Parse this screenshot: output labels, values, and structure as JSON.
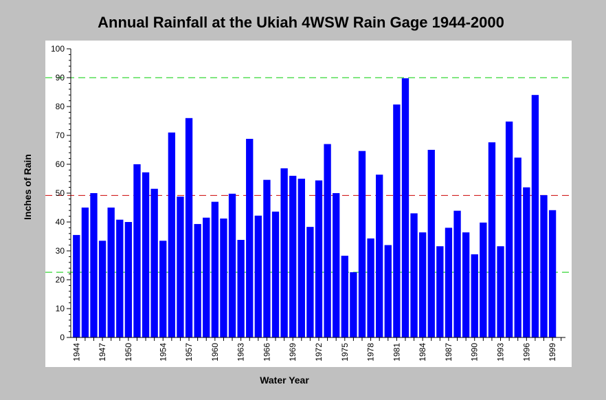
{
  "chart_data": {
    "type": "bar",
    "title": "Annual Rainfall at the Ukiah 4WSW Rain Gage 1944-2000",
    "xlabel": "Water Year",
    "ylabel": "Inches of Rain",
    "ylim": [
      0,
      100
    ],
    "yticks": [
      0,
      10,
      20,
      30,
      40,
      50,
      60,
      70,
      80,
      90,
      100
    ],
    "xtick_labels": [
      "1944",
      "1947",
      "1950",
      "1954",
      "1957",
      "1960",
      "1963",
      "1966",
      "1969",
      "1972",
      "1975",
      "1978",
      "1981",
      "1984",
      "1987",
      "1990",
      "1993",
      "1996",
      "1999"
    ],
    "categories": [
      1944,
      1945,
      1946,
      1947,
      1948,
      1949,
      1950,
      1951,
      1952,
      1953,
      1954,
      1955,
      1956,
      1957,
      1958,
      1959,
      1960,
      1961,
      1962,
      1963,
      1964,
      1965,
      1966,
      1967,
      1968,
      1969,
      1970,
      1971,
      1972,
      1973,
      1974,
      1975,
      1976,
      1977,
      1978,
      1979,
      1980,
      1981,
      1982,
      1983,
      1984,
      1985,
      1986,
      1987,
      1988,
      1989,
      1990,
      1991,
      1992,
      1993,
      1994,
      1995,
      1996,
      1997,
      1998,
      1999,
      2000
    ],
    "values": [
      35.5,
      45,
      50,
      33.5,
      45,
      40.8,
      40,
      60,
      57.2,
      51.5,
      33.5,
      71,
      48.8,
      76,
      39.3,
      41.5,
      47,
      41.2,
      49.8,
      33.8,
      68.8,
      42.2,
      54.6,
      43.6,
      58.6,
      56,
      55,
      38.3,
      54.4,
      67,
      50,
      28.3,
      22.6,
      64.6,
      34.3,
      56.4,
      32,
      80.7,
      89.8,
      43,
      36.4,
      65,
      31.6,
      38,
      43.9,
      36.4,
      28.8,
      39.8,
      67.6,
      31.6,
      74.8,
      62.3,
      52,
      84,
      49.3,
      44.1,
      0
    ],
    "reference_lines": [
      {
        "value": 90,
        "color": "#00cc00",
        "style": "dashed"
      },
      {
        "value": 49.2,
        "color": "#cc0000",
        "style": "dashed"
      },
      {
        "value": 22.6,
        "color": "#00cc00",
        "style": "dashed"
      }
    ],
    "colors": {
      "bar": "#0000ff",
      "plot_background": "#ffffff",
      "page_background": "#c0c0c0"
    },
    "grid": false,
    "legend": "none"
  }
}
